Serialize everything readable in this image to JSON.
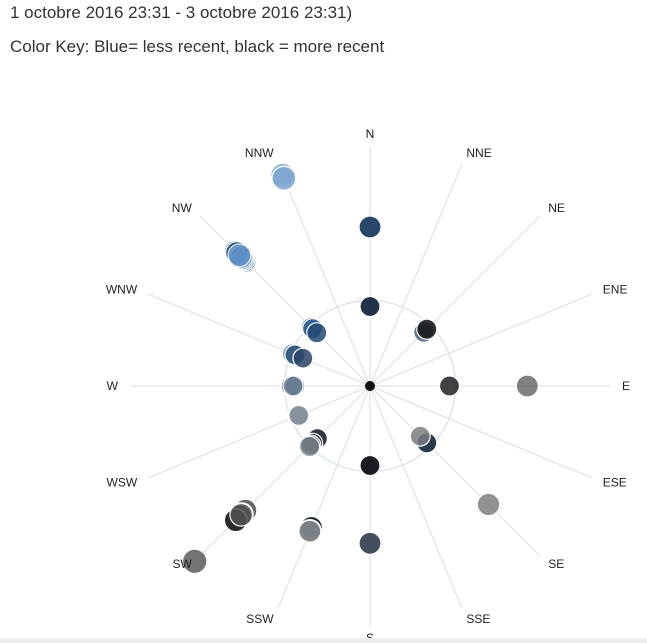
{
  "header": {
    "date_range": "1 octobre 2016 23:31 - 3 octobre 2016 23:31)",
    "color_key": "Color Key: Blue= less recent, black = more recent"
  },
  "colors": {
    "less_recent": "#2f6fb0",
    "more_recent": "#0b0b0b",
    "grid": "#dde3e8"
  },
  "chart_data": {
    "type": "scatter",
    "projection": "polar",
    "directions": [
      "N",
      "NNE",
      "NE",
      "ENE",
      "E",
      "ESE",
      "SE",
      "SSE",
      "S",
      "SSW",
      "SW",
      "WSW",
      "W",
      "WNW",
      "NW",
      "NNW"
    ],
    "reference_ring_radius": 1,
    "axis_radius": 2.9,
    "points": [
      {
        "dir": "NNW",
        "r": 2.67,
        "color": "#88aed6",
        "opacity": 0.85
      },
      {
        "dir": "NNW",
        "r": 2.63,
        "color": "#7ea6d2",
        "opacity": 0.85
      },
      {
        "dir": "NW",
        "r": 2.08,
        "color": "#6f9ccc",
        "opacity": 0.85
      },
      {
        "dir": "NW",
        "r": 2.09,
        "color": "#5a8cc2",
        "opacity": 0.85
      },
      {
        "dir": "NW",
        "r": 2.07,
        "color": "#4a80bd",
        "opacity": 0.85
      },
      {
        "dir": "NW",
        "r": 2.09,
        "color": "#3f77b5",
        "opacity": 0.85
      },
      {
        "dir": "NW",
        "r": 2.11,
        "color": "#2f6ba9",
        "opacity": 0.85
      },
      {
        "dir": "NW",
        "r": 2.17,
        "color": "#2f66a0",
        "opacity": 0.85
      },
      {
        "dir": "NW",
        "r": 2.22,
        "color": "#255b91",
        "opacity": 0.85
      },
      {
        "dir": "NW",
        "r": 2.2,
        "color": "#1f4e80",
        "opacity": 0.85
      },
      {
        "dir": "NW",
        "r": 2.13,
        "color": "#6c99cb",
        "opacity": 0.8
      },
      {
        "dir": "NW",
        "r": 2.16,
        "color": "#5c8fc5",
        "opacity": 0.8
      },
      {
        "dir": "N",
        "r": 1.86,
        "color": "#1c3d63",
        "opacity": 0.95
      },
      {
        "dir": "N",
        "r": 0.93,
        "color": "#16273f",
        "opacity": 0.95
      },
      {
        "dir": "NE",
        "r": 0.89,
        "color": "#46617d",
        "opacity": 0.85
      },
      {
        "dir": "NE",
        "r": 0.94,
        "color": "#1a1a1a",
        "opacity": 0.9
      },
      {
        "dir": "E",
        "r": 0.93,
        "color": "#2b2e31",
        "opacity": 0.9
      },
      {
        "dir": "E",
        "r": 1.84,
        "color": "#6b6b6b",
        "opacity": 0.85
      },
      {
        "dir": "SE",
        "r": 0.94,
        "color": "#16263c",
        "opacity": 0.9
      },
      {
        "dir": "SE",
        "r": 0.83,
        "color": "#7a7d80",
        "opacity": 0.85
      },
      {
        "dir": "SE",
        "r": 1.96,
        "color": "#7c7f82",
        "opacity": 0.85
      },
      {
        "dir": "S",
        "r": 0.93,
        "color": "#0e1116",
        "opacity": 0.95
      },
      {
        "dir": "S",
        "r": 1.84,
        "color": "#3a4556",
        "opacity": 0.95
      },
      {
        "dir": "NW",
        "r": 0.97,
        "color": "#3b74b1",
        "opacity": 0.85
      },
      {
        "dir": "NW",
        "r": 0.95,
        "color": "#2f5f93",
        "opacity": 0.85
      },
      {
        "dir": "NW",
        "r": 0.88,
        "color": "#244a72",
        "opacity": 0.85
      },
      {
        "dir": "WNW",
        "r": 0.98,
        "color": "#5d7ea3",
        "opacity": 0.8
      },
      {
        "dir": "WNW",
        "r": 0.95,
        "color": "#2d5178",
        "opacity": 0.85
      },
      {
        "dir": "WNW",
        "r": 0.85,
        "color": "#2b4566",
        "opacity": 0.85
      },
      {
        "dir": "W",
        "r": 0.93,
        "color": "#3e5a7c",
        "opacity": 0.85
      },
      {
        "dir": "W",
        "r": 0.92,
        "color": "#56708d",
        "opacity": 0.8
      },
      {
        "dir": "W",
        "r": 0.88,
        "color": "#5f7994",
        "opacity": 0.8
      },
      {
        "dir": "W",
        "r": 0.9,
        "color": "#6c7e91",
        "opacity": 0.8
      },
      {
        "dir": "WSW",
        "r": 0.91,
        "color": "#7a8794",
        "opacity": 0.8
      },
      {
        "dir": "WSW",
        "r": 0.9,
        "color": "#848d97",
        "opacity": 0.75
      },
      {
        "dir": "SW",
        "r": 0.87,
        "color": "#1f2630",
        "opacity": 0.9
      },
      {
        "dir": "SW",
        "r": 0.95,
        "color": "#111418",
        "opacity": 0.9
      },
      {
        "dir": "SW",
        "r": 0.98,
        "color": "#1b2736",
        "opacity": 0.85
      },
      {
        "dir": "SW",
        "r": 1.0,
        "color": "#858c92",
        "opacity": 0.8
      },
      {
        "dir": "SW",
        "r": 2.11,
        "color": "#585858",
        "opacity": 0.85
      },
      {
        "dir": "SW",
        "r": 2.06,
        "color": "#4d4d4d",
        "opacity": 0.85
      },
      {
        "dir": "SW",
        "r": 2.12,
        "color": "#3b3f43",
        "opacity": 0.85
      },
      {
        "dir": "SW",
        "r": 2.15,
        "color": "#2e3236",
        "opacity": 0.85
      },
      {
        "dir": "SW",
        "r": 2.22,
        "color": "#14171b",
        "opacity": 0.9
      },
      {
        "dir": "SW",
        "r": 2.13,
        "color": "#565656",
        "opacity": 0.85
      },
      {
        "dir": "SW",
        "r": 2.9,
        "color": "#646464",
        "opacity": 0.9
      },
      {
        "dir": "SSW",
        "r": 1.8,
        "color": "#52565a",
        "opacity": 0.85
      },
      {
        "dir": "SSW",
        "r": 1.79,
        "color": "#12202e",
        "opacity": 0.9
      },
      {
        "dir": "SSW",
        "r": 1.83,
        "color": "#3d4a58",
        "opacity": 0.85
      },
      {
        "dir": "SSW",
        "r": 1.84,
        "color": "#8a8e92",
        "opacity": 0.8
      }
    ]
  }
}
